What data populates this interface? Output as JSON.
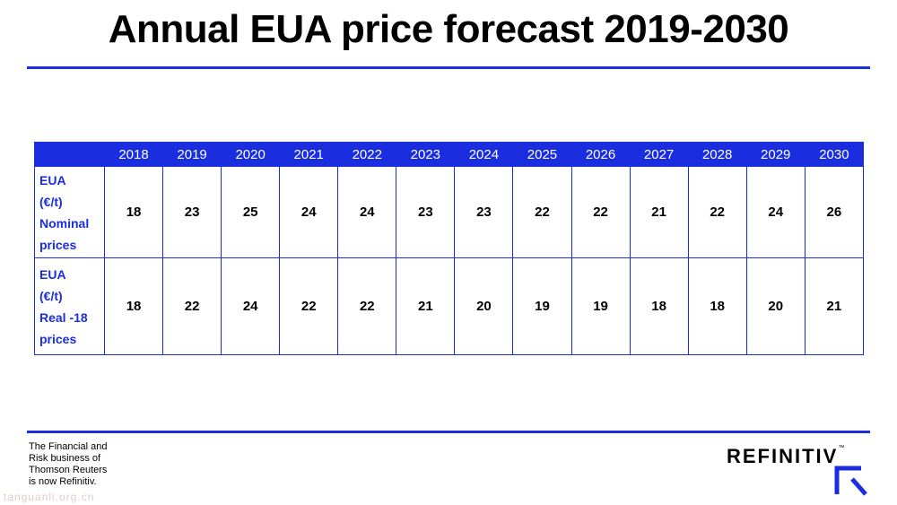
{
  "title": "Annual EUA price forecast 2019-2030",
  "chart_data": {
    "type": "table",
    "columns": [
      "2018",
      "2019",
      "2020",
      "2021",
      "2022",
      "2023",
      "2024",
      "2025",
      "2026",
      "2027",
      "2028",
      "2029",
      "2030"
    ],
    "rows": [
      {
        "label_lines": [
          "EUA",
          "(€/t)",
          "Nominal",
          "prices"
        ],
        "values": [
          18,
          23,
          25,
          24,
          24,
          23,
          23,
          22,
          22,
          21,
          22,
          24,
          26
        ]
      },
      {
        "label_lines": [
          "EUA",
          "(€/t)",
          "Real -18",
          "prices"
        ],
        "values": [
          18,
          22,
          24,
          22,
          22,
          21,
          20,
          19,
          19,
          18,
          18,
          20,
          21
        ]
      }
    ]
  },
  "footer": {
    "note_lines": [
      "The Financial and",
      "Risk business of",
      "Thomson Reuters",
      "is now Refinitiv."
    ],
    "logo": "REFINITIV",
    "trademark": "™",
    "watermark": "tanguanli.org.cn"
  },
  "colors": {
    "accent": "#1a2ee0",
    "header_text": "#ffffff"
  }
}
